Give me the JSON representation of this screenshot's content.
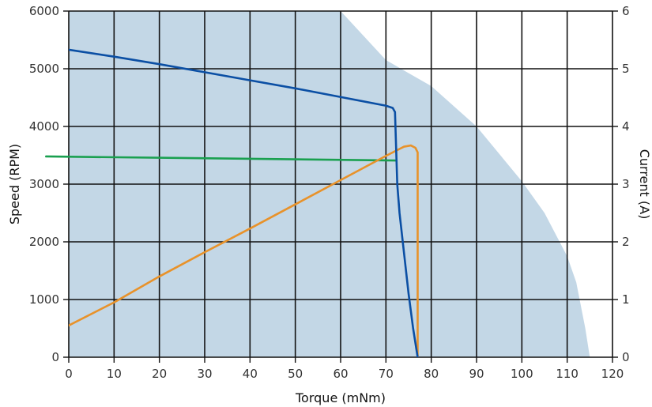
{
  "chart_data": {
    "type": "line",
    "title": "",
    "xlabel": "Torque (mNm)",
    "ylabel": "Speed (RPM)",
    "y2label": "Current (A)",
    "xlim": [
      0,
      120
    ],
    "ylim": [
      0,
      6000
    ],
    "y2lim": [
      0,
      6
    ],
    "x_ticks": [
      0,
      10,
      20,
      30,
      40,
      50,
      60,
      70,
      80,
      90,
      100,
      110,
      120
    ],
    "y_ticks": [
      0,
      1000,
      2000,
      3000,
      4000,
      5000,
      6000
    ],
    "y2_ticks": [
      0,
      1,
      2,
      3,
      4,
      5,
      6
    ],
    "grid": true,
    "legend": "none",
    "colors": {
      "area": "#c3d7e6",
      "speed": "#0b4fa4",
      "current": "#e8922a",
      "green": "#1aa050",
      "grid": "#111111"
    },
    "series": [
      {
        "type": "area",
        "axis": "left",
        "x": [
          0,
          60,
          70,
          80,
          90,
          100,
          105,
          110,
          112,
          114,
          115
        ],
        "y": [
          6000,
          6000,
          5150,
          4700,
          4000,
          3050,
          2500,
          1750,
          1300,
          500,
          0
        ]
      },
      {
        "type": "line",
        "axis": "left",
        "x": [
          0,
          10,
          20,
          30,
          40,
          50,
          60,
          70,
          71.5,
          72,
          72.5,
          73,
          74,
          75,
          76,
          77
        ],
        "y": [
          5330,
          5210,
          5080,
          4940,
          4800,
          4660,
          4510,
          4360,
          4320,
          4250,
          3000,
          2500,
          1800,
          1100,
          500,
          0
        ]
      },
      {
        "type": "line",
        "axis": "right",
        "x": [
          0,
          10,
          20,
          30,
          40,
          50,
          60,
          70,
          72,
          74,
          75.5,
          76.5,
          77,
          77,
          77
        ],
        "y": [
          0.55,
          0.95,
          1.4,
          1.82,
          2.23,
          2.65,
          3.07,
          3.49,
          3.57,
          3.65,
          3.67,
          3.63,
          3.55,
          1.5,
          0
        ]
      },
      {
        "type": "line",
        "axis": "right",
        "x": [
          -5,
          72
        ],
        "y": [
          3.48,
          3.41
        ]
      }
    ]
  }
}
